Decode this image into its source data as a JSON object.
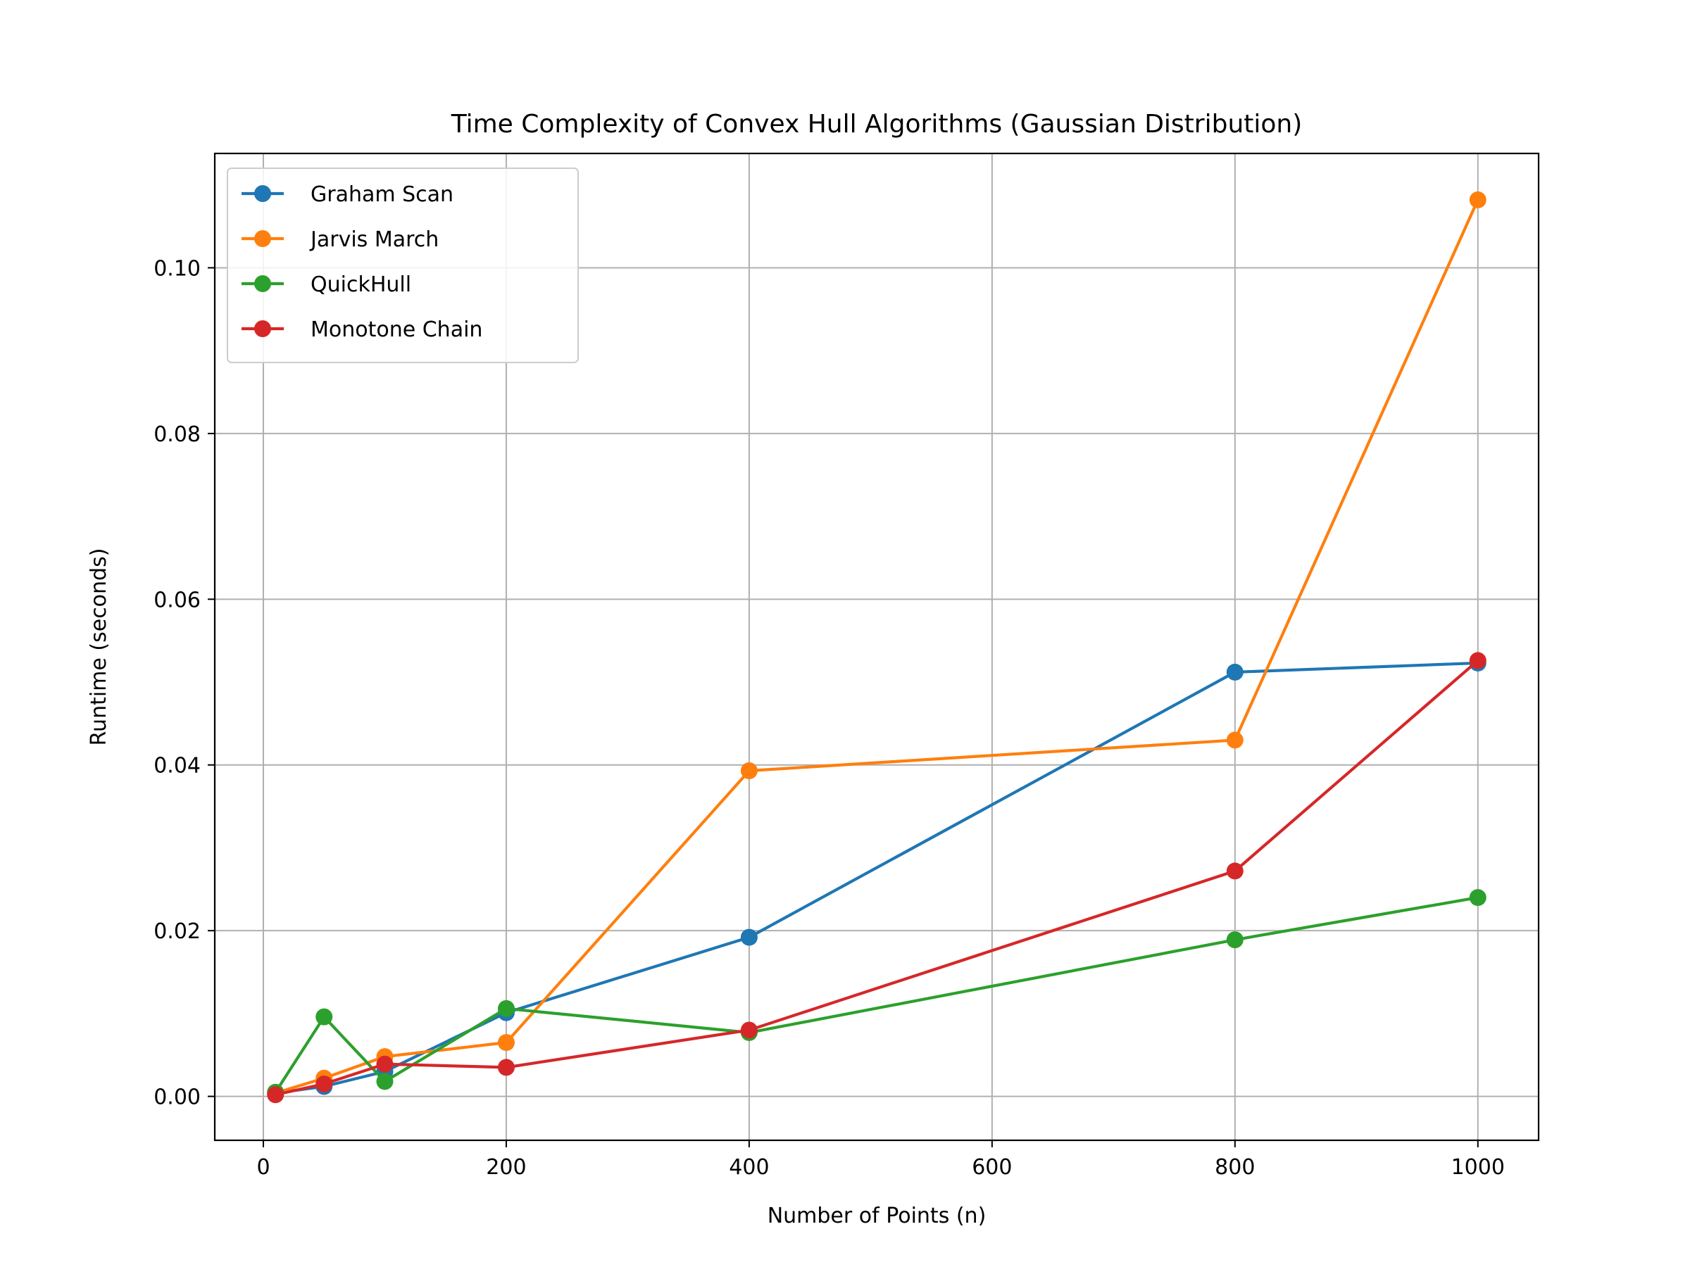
{
  "chart_data": {
    "type": "line",
    "title": "Time Complexity of Convex Hull Algorithms (Gaussian Distribution)",
    "xlabel": "Number of Points (n)",
    "ylabel": "Runtime (seconds)",
    "x": [
      10,
      50,
      100,
      200,
      400,
      800,
      1000
    ],
    "xlim": [
      -40,
      1050
    ],
    "ylim": [
      -0.0053,
      0.1138
    ],
    "xticks": [
      0,
      200,
      400,
      600,
      800,
      1000
    ],
    "xtick_labels": [
      "0",
      "200",
      "400",
      "600",
      "800",
      "1000"
    ],
    "yticks": [
      0.0,
      0.02,
      0.04,
      0.06,
      0.08,
      0.1
    ],
    "ytick_labels": [
      "0.00",
      "0.02",
      "0.04",
      "0.06",
      "0.08",
      "0.10"
    ],
    "grid": true,
    "legend_position": "upper-left",
    "series": [
      {
        "name": "Graham Scan",
        "color": "#1f77b4",
        "values": [
          0.0004,
          0.0012,
          0.003,
          0.0101,
          0.0192,
          0.0512,
          0.0523
        ]
      },
      {
        "name": "Jarvis March",
        "color": "#ff7f0e",
        "values": [
          0.0004,
          0.0022,
          0.0048,
          0.0065,
          0.0393,
          0.043,
          0.1082
        ]
      },
      {
        "name": "QuickHull",
        "color": "#2ca02c",
        "values": [
          0.0005,
          0.0096,
          0.0018,
          0.0106,
          0.0077,
          0.0189,
          0.024
        ]
      },
      {
        "name": "Monotone Chain",
        "color": "#d62728",
        "values": [
          0.0002,
          0.0015,
          0.0039,
          0.0035,
          0.008,
          0.0272,
          0.0526
        ]
      }
    ]
  }
}
